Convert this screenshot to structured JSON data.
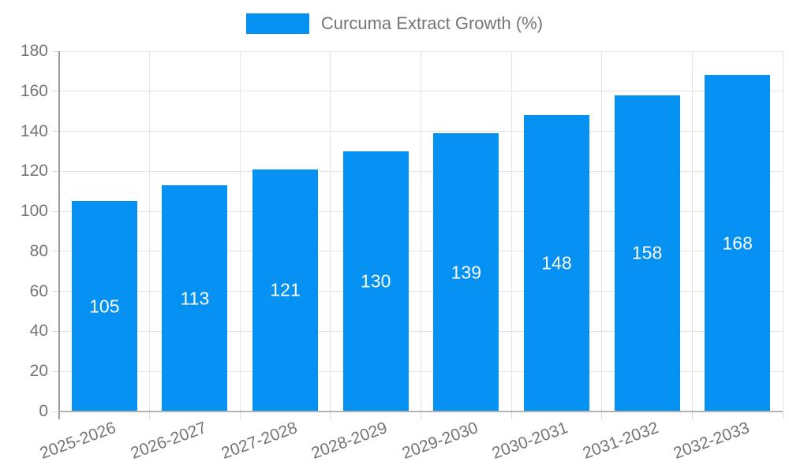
{
  "chart_data": {
    "type": "bar",
    "title": "",
    "legend_entries": [
      "Curcuma Extract Growth (%)"
    ],
    "legend_position": "top-center",
    "categories": [
      "2025-2026",
      "2026-2027",
      "2027-2028",
      "2028-2029",
      "2029-2030",
      "2030-2031",
      "2031-2032",
      "2032-2033"
    ],
    "values": [
      105,
      113,
      121,
      130,
      139,
      148,
      158,
      168
    ],
    "data_labels_shown": true,
    "xlabel": "",
    "ylabel": "",
    "ylim": [
      0,
      180
    ],
    "yticks": [
      0,
      20,
      40,
      60,
      80,
      100,
      120,
      140,
      160,
      180
    ],
    "grid": true,
    "colors": {
      "bar": "#0591f2",
      "bar_value_text": "#ffffff",
      "axis_text": "#757575",
      "gridline": "#e4e4e4",
      "y_axis_line": "#9b9b9b",
      "x_axis_line": "#b3b3b3",
      "background": "#ffffff"
    }
  }
}
